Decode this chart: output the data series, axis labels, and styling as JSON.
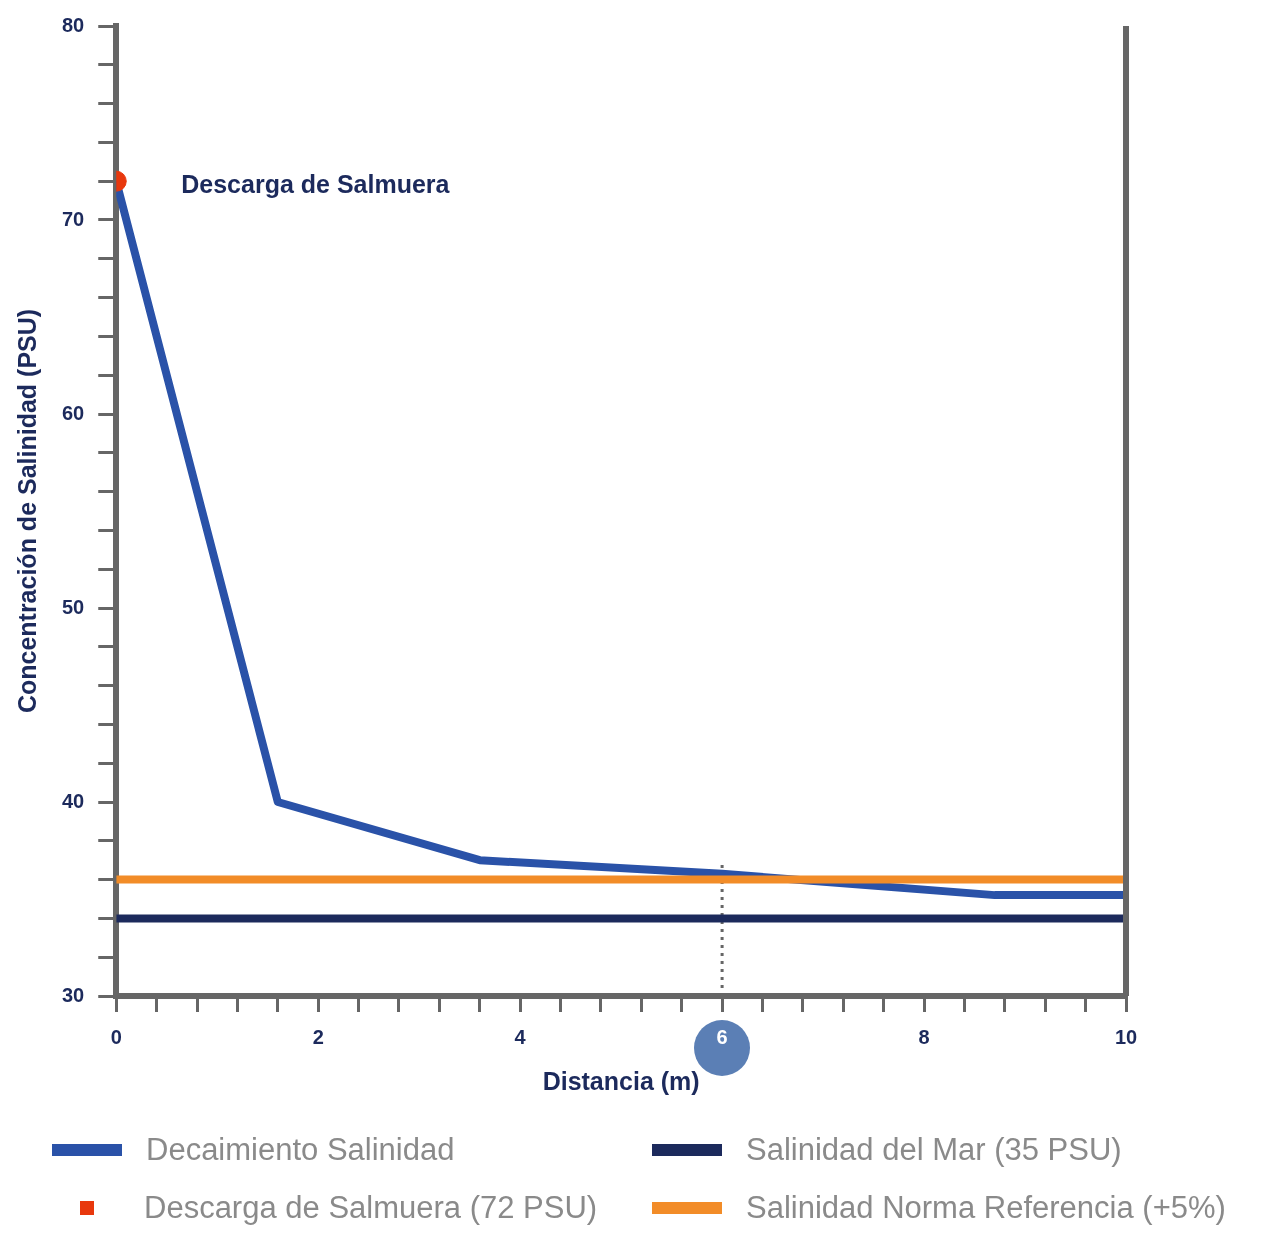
{
  "chart_data": {
    "type": "line",
    "xlabel": "Distancia (m)",
    "ylabel": "Concentración de Salinidad (PSU)",
    "xlim": [
      0,
      10
    ],
    "ylim": [
      30,
      80
    ],
    "xticks": [
      0,
      {
        "value": 0.4,
        "label": null
      },
      {
        "value": 0.8,
        "label": null
      },
      {
        "value": 1.2,
        "label": null
      },
      {
        "value": 1.6,
        "label": null
      },
      2,
      {
        "value": 2.4,
        "label": null
      },
      {
        "value": 2.8,
        "label": null
      },
      {
        "value": 3.2,
        "label": null
      },
      {
        "value": 3.6,
        "label": null
      },
      4,
      {
        "value": 4.4,
        "label": null
      },
      {
        "value": 4.8,
        "label": null
      },
      {
        "value": 5.2,
        "label": null
      },
      {
        "value": 5.6,
        "label": null
      },
      6,
      {
        "value": 6.4,
        "label": null
      },
      {
        "value": 6.8,
        "label": null
      },
      {
        "value": 7.2,
        "label": null
      },
      {
        "value": 7.6,
        "label": null
      },
      8,
      {
        "value": 8.4,
        "label": null
      },
      {
        "value": 8.8,
        "label": null
      },
      {
        "value": 9.2,
        "label": null
      },
      {
        "value": 9.6,
        "label": null
      },
      10
    ],
    "yticks": [
      30,
      {
        "value": 32,
        "label": null
      },
      {
        "value": 34,
        "label": null
      },
      {
        "value": 36,
        "label": null
      },
      {
        "value": 38,
        "label": null
      },
      40,
      {
        "value": 42,
        "label": null
      },
      {
        "value": 44,
        "label": null
      },
      {
        "value": 46,
        "label": null
      },
      {
        "value": 48,
        "label": null
      },
      50,
      {
        "value": 52,
        "label": null
      },
      {
        "value": 54,
        "label": null
      },
      {
        "value": 56,
        "label": null
      },
      {
        "value": 58,
        "label": null
      },
      60,
      {
        "value": 62,
        "label": null
      },
      {
        "value": 64,
        "label": null
      },
      {
        "value": 66,
        "label": null
      },
      {
        "value": 68,
        "label": null
      },
      70,
      {
        "value": 72,
        "label": null
      },
      {
        "value": 74,
        "label": null
      },
      {
        "value": 76,
        "label": null
      },
      {
        "value": 78,
        "label": null
      },
      80
    ],
    "series": [
      {
        "name": "Decaimiento Salinidad",
        "color": "#2a52a8",
        "x": [
          0,
          1.6,
          3.6,
          6,
          8.7,
          10
        ],
        "values": [
          72,
          40,
          37,
          36.3,
          35.2,
          35.2
        ]
      },
      {
        "name": "Descarga de Salmuera (72 PSU)",
        "type": "scatter",
        "color": "#e8380d",
        "x": [
          0
        ],
        "values": [
          72
        ]
      },
      {
        "name": "Salinidad del Mar (35 PSU)",
        "color": "#1c2a5c",
        "x": [
          0,
          10
        ],
        "values": [
          34,
          34
        ]
      },
      {
        "name": "Salinidad Norma Referencia (+5%)",
        "color": "#f28c28",
        "x": [
          0,
          10
        ],
        "values": [
          36,
          36
        ]
      }
    ],
    "ref_lines": [
      {
        "axis": "x",
        "value": 6,
        "color": "#666666",
        "line_style": "dotted"
      }
    ],
    "annotations": [
      {
        "text": "Descarga de Salmuera",
        "x": 0,
        "y": 72
      }
    ],
    "legend": "bottom",
    "grid": false
  }
}
